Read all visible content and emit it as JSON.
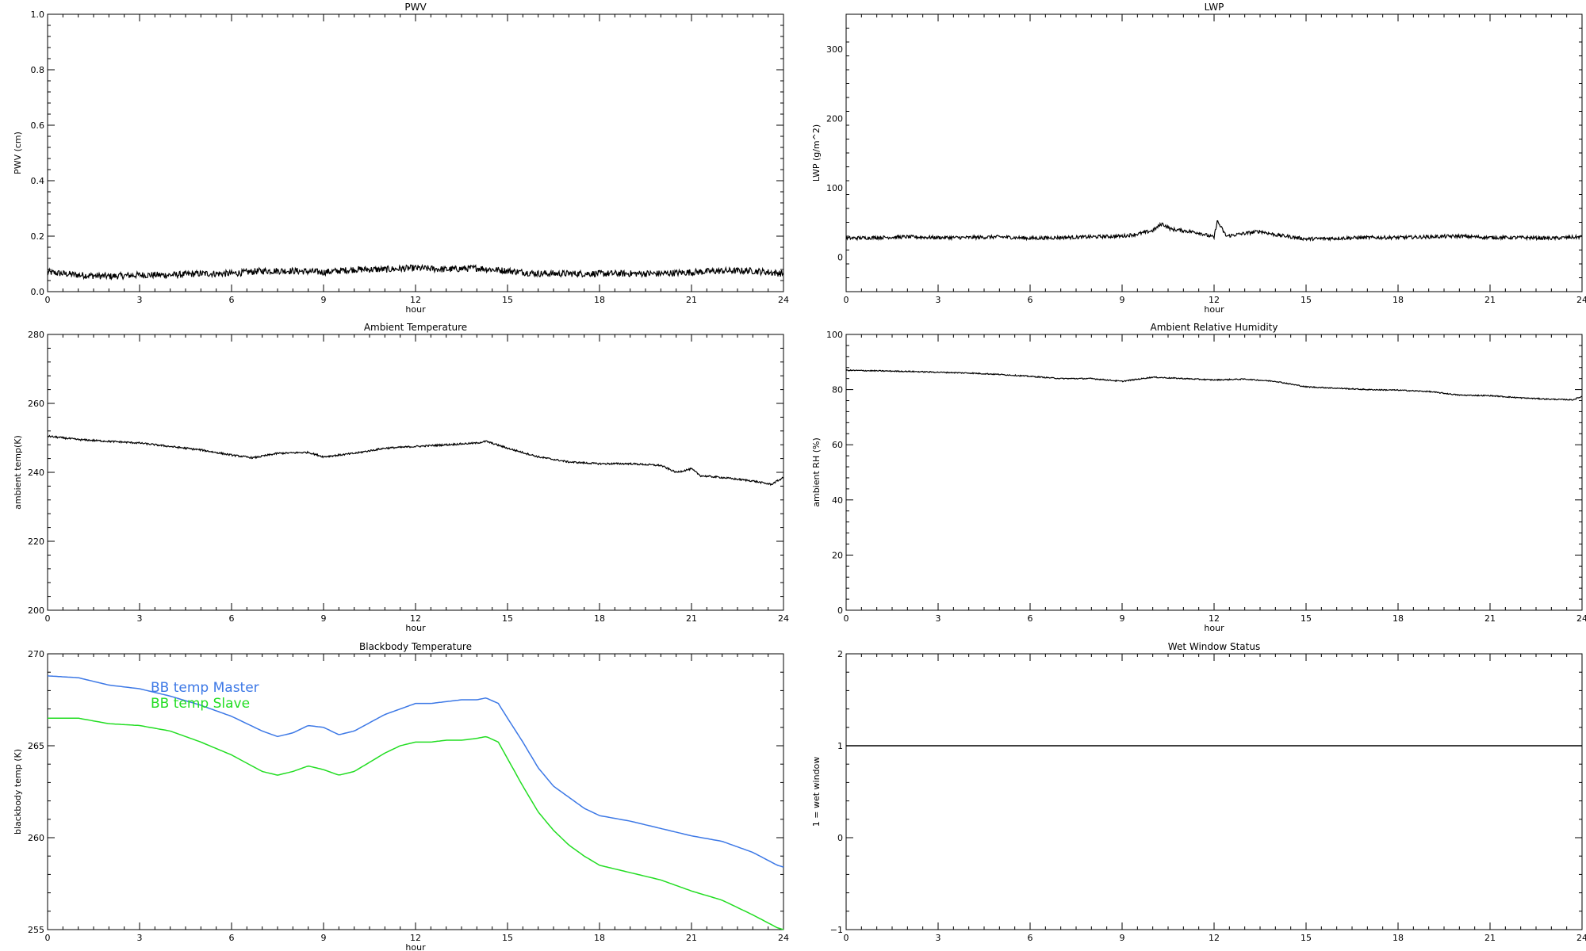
{
  "chart_data": [
    {
      "type": "line",
      "title": "PWV",
      "xlabel": "hour",
      "ylabel": "PWV (cm)",
      "xlim": [
        0,
        24
      ],
      "ylim": [
        0,
        1.0
      ],
      "xticks": [
        0,
        3,
        6,
        9,
        12,
        15,
        18,
        21,
        24
      ],
      "yticks": [
        0.0,
        0.2,
        0.4,
        0.6,
        0.8,
        1.0
      ],
      "ytick_labels": [
        "0.0",
        "0.2",
        "0.4",
        "0.6",
        "0.8",
        "1.0"
      ],
      "grid": false,
      "series": [
        {
          "color": "#000000",
          "noise": 0.012,
          "x": [
            0,
            1,
            2,
            3,
            4,
            5,
            6,
            7,
            8,
            9,
            10,
            11,
            12,
            13,
            14,
            15,
            16,
            17,
            18,
            19,
            20,
            21,
            22,
            23,
            24
          ],
          "y": [
            0.07,
            0.06,
            0.055,
            0.06,
            0.06,
            0.065,
            0.065,
            0.075,
            0.075,
            0.07,
            0.08,
            0.08,
            0.085,
            0.08,
            0.085,
            0.075,
            0.065,
            0.065,
            0.065,
            0.065,
            0.065,
            0.07,
            0.075,
            0.075,
            0.065
          ]
        }
      ]
    },
    {
      "type": "line",
      "title": "LWP",
      "xlabel": "hour",
      "ylabel": "LWP (g/m^2)",
      "xlim": [
        0,
        24
      ],
      "ylim": [
        -50,
        350
      ],
      "xticks": [
        0,
        3,
        6,
        9,
        12,
        15,
        18,
        21,
        24
      ],
      "yticks": [
        0,
        100,
        200,
        300
      ],
      "ytick_labels": [
        "0",
        "100",
        "200",
        "300"
      ],
      "grid": false,
      "series": [
        {
          "color": "#000000",
          "noise": 2.5,
          "x": [
            0,
            1,
            2,
            3,
            4,
            5,
            6,
            7,
            8,
            9,
            9.5,
            10,
            10.3,
            10.6,
            11,
            11.5,
            12,
            12.1,
            12.4,
            13,
            13.5,
            14,
            15,
            16,
            17,
            18,
            19,
            20,
            21,
            22,
            23,
            24
          ],
          "y": [
            27,
            28,
            29,
            28,
            28,
            29,
            27,
            28,
            29,
            30,
            33,
            38,
            48,
            40,
            38,
            35,
            28,
            52,
            30,
            34,
            37,
            32,
            26,
            27,
            28,
            28,
            29,
            30,
            28,
            28,
            27,
            29
          ]
        }
      ]
    },
    {
      "type": "line",
      "title": "Ambient Temperature",
      "xlabel": "hour",
      "ylabel": "ambient temp(K)",
      "xlim": [
        0,
        24
      ],
      "ylim": [
        200,
        280
      ],
      "xticks": [
        0,
        3,
        6,
        9,
        12,
        15,
        18,
        21,
        24
      ],
      "yticks": [
        200,
        220,
        240,
        260,
        280
      ],
      "ytick_labels": [
        "200",
        "220",
        "240",
        "260",
        "280"
      ],
      "grid": false,
      "series": [
        {
          "color": "#000000",
          "noise": 0.25,
          "x": [
            0,
            1,
            2,
            3,
            4,
            5,
            6,
            6.7,
            7.5,
            8.5,
            9,
            10,
            11,
            12,
            13,
            14,
            14.3,
            15,
            16,
            17,
            18,
            19,
            20,
            20.5,
            21,
            21.3,
            22,
            23,
            23.6,
            24
          ],
          "y": [
            250.5,
            249.5,
            249,
            248.5,
            247.5,
            246.5,
            245,
            244.2,
            245.5,
            245.8,
            244.5,
            245.5,
            247,
            247.5,
            248,
            248.5,
            249,
            247,
            244.5,
            243,
            242.5,
            242.5,
            242,
            240,
            241,
            239,
            238.5,
            237.5,
            236.5,
            238.5
          ]
        }
      ]
    },
    {
      "type": "line",
      "title": "Ambient Relative Humidity",
      "xlabel": "hour",
      "ylabel": "ambient RH (%)",
      "xlim": [
        0,
        24
      ],
      "ylim": [
        0,
        100
      ],
      "xticks": [
        0,
        3,
        6,
        9,
        12,
        15,
        18,
        21,
        24
      ],
      "yticks": [
        0,
        20,
        40,
        60,
        80,
        100
      ],
      "ytick_labels": [
        "0",
        "20",
        "40",
        "60",
        "80",
        "100"
      ],
      "grid": false,
      "series": [
        {
          "color": "#000000",
          "noise": 0.2,
          "x": [
            0,
            1,
            2,
            3,
            4,
            5,
            6,
            7,
            8,
            9,
            10,
            11,
            12,
            13,
            14,
            15,
            16,
            17,
            18,
            19,
            20,
            21,
            22,
            23,
            23.7,
            24
          ],
          "y": [
            87,
            86.8,
            86.6,
            86.3,
            86,
            85.5,
            84.8,
            84,
            84,
            83,
            84.5,
            84,
            83.5,
            83.8,
            83,
            81,
            80.5,
            80,
            79.8,
            79.3,
            78,
            77.8,
            77,
            76.5,
            76.3,
            77.5
          ]
        }
      ]
    },
    {
      "type": "line",
      "title": "Blackbody Temperature",
      "xlabel": "hour",
      "ylabel": "blackbody temp (K)",
      "xlim": [
        0,
        24
      ],
      "ylim": [
        255,
        270
      ],
      "xticks": [
        0,
        3,
        6,
        9,
        12,
        15,
        18,
        21,
        24
      ],
      "yticks": [
        255,
        260,
        265,
        270
      ],
      "ytick_labels": [
        "255",
        "260",
        "265",
        "270"
      ],
      "grid": false,
      "legend_placement": "top-left",
      "series": [
        {
          "name": "BB temp Master",
          "color": "#3c78e6",
          "noise": 0,
          "x": [
            0,
            1,
            2,
            3,
            4,
            5,
            6,
            7,
            7.5,
            8,
            8.5,
            9,
            9.5,
            10,
            11,
            11.5,
            12,
            12.5,
            13,
            13.5,
            14,
            14.3,
            14.7,
            15,
            15.5,
            16,
            16.5,
            17,
            17.5,
            18,
            19,
            20,
            21,
            22,
            23,
            23.8,
            24
          ],
          "y": [
            268.8,
            268.7,
            268.3,
            268.1,
            267.7,
            267.2,
            266.6,
            265.8,
            265.5,
            265.7,
            266.1,
            266.0,
            265.6,
            265.8,
            266.7,
            267.0,
            267.3,
            267.3,
            267.4,
            267.5,
            267.5,
            267.6,
            267.3,
            266.5,
            265.2,
            263.8,
            262.8,
            262.2,
            261.6,
            261.2,
            260.9,
            260.5,
            260.1,
            259.8,
            259.2,
            258.5,
            258.4
          ]
        },
        {
          "name": "BB temp Slave",
          "color": "#22dd22",
          "noise": 0,
          "x": [
            0,
            1,
            2,
            3,
            4,
            5,
            6,
            7,
            7.5,
            8,
            8.5,
            9,
            9.5,
            10,
            11,
            11.5,
            12,
            12.5,
            13,
            13.5,
            14,
            14.3,
            14.7,
            15,
            15.5,
            16,
            16.5,
            17,
            17.5,
            18,
            19,
            20,
            21,
            22,
            23,
            23.8,
            24
          ],
          "y": [
            266.5,
            266.5,
            266.2,
            266.1,
            265.8,
            265.2,
            264.5,
            263.6,
            263.4,
            263.6,
            263.9,
            263.7,
            263.4,
            263.6,
            264.6,
            265.0,
            265.2,
            265.2,
            265.3,
            265.3,
            265.4,
            265.5,
            265.2,
            264.3,
            262.8,
            261.4,
            260.4,
            259.6,
            259.0,
            258.5,
            258.1,
            257.7,
            257.1,
            256.6,
            255.8,
            255.1,
            255.0
          ]
        }
      ]
    },
    {
      "type": "line",
      "title": "Wet Window Status",
      "xlabel": "",
      "ylabel": "1 = wet window",
      "xlim": [
        0,
        24
      ],
      "ylim": [
        -1,
        2
      ],
      "xticks": [
        0,
        3,
        6,
        9,
        12,
        15,
        18,
        21,
        24
      ],
      "yticks": [
        -1,
        0,
        1,
        2
      ],
      "ytick_labels": [
        "−1",
        "0",
        "1",
        "2"
      ],
      "grid": false,
      "series": [
        {
          "color": "#000000",
          "noise": 0,
          "x": [
            0,
            24
          ],
          "y": [
            1,
            1
          ]
        }
      ]
    }
  ]
}
